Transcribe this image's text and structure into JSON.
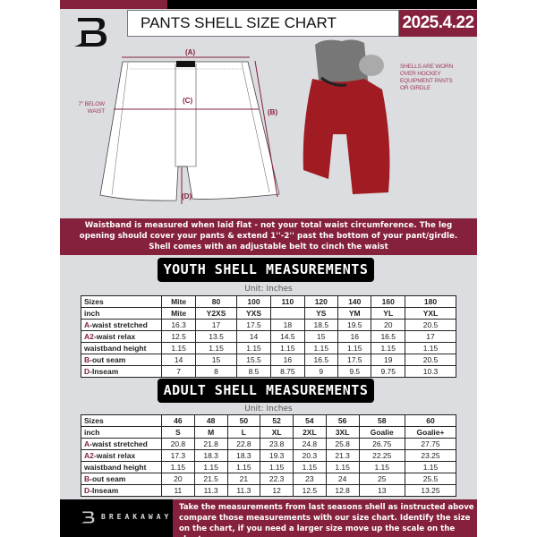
{
  "header": {
    "title": "PANTS SHELL SIZE CHART",
    "date": "2025.4.22"
  },
  "colors": {
    "brand_maroon": "#85213d",
    "pants_red": "#a01c22",
    "background": "#dcdde0"
  },
  "diagram": {
    "label_a": "(A)",
    "label_b": "(B)",
    "label_c": "(C)",
    "label_d": "(D)",
    "c_note": [
      "7'' BELOW",
      "WAIST"
    ],
    "side_note": [
      "SHELLS ARE WORN",
      "OVER HOCKEY",
      "EQUIPMENT PANTS",
      "OR GIRDLE"
    ]
  },
  "banner": {
    "lines": [
      "Waistband is measured when laid flat - not your total waist circumference. The leg",
      "opening should cover your pants & extend 1''-2'' past the bottom of your pant/girdle.",
      "Shell comes with an adjustable belt to cinch the waist"
    ]
  },
  "youth": {
    "title": "YOUTH SHELL MEASUREMENTS",
    "unit": "Unit: Inches",
    "rows": [
      {
        "code": "",
        "label": "Sizes",
        "values": [
          "Mite",
          "80",
          "100",
          "110",
          "120",
          "140",
          "160",
          "180"
        ]
      },
      {
        "code": "",
        "label": "inch",
        "values": [
          "Mite",
          "Y2XS",
          "YXS",
          "",
          "YS",
          "YM",
          "YL",
          "YXL"
        ]
      },
      {
        "code": "A",
        "label": "-waist stretched",
        "values": [
          "16.3",
          "17",
          "17.5",
          "18",
          "18.5",
          "19.5",
          "20",
          "20.5"
        ]
      },
      {
        "code": "A2",
        "label": "-waist relax",
        "values": [
          "12.5",
          "13.5",
          "14",
          "14.5",
          "15",
          "16",
          "16.5",
          "17"
        ]
      },
      {
        "code": "",
        "label": "waistband height",
        "values": [
          "1.15",
          "1.15",
          "1.15",
          "1.15",
          "1.15",
          "1.15",
          "1.15",
          "1.15"
        ]
      },
      {
        "code": "B",
        "label": "-out seam",
        "values": [
          "14",
          "15",
          "15.5",
          "16",
          "16.5",
          "17.5",
          "19",
          "20.5"
        ]
      },
      {
        "code": "D",
        "label": "-Inseam",
        "values": [
          "7",
          "8",
          "8.5",
          "8.75",
          "9",
          "9.5",
          "9.75",
          "10.3"
        ]
      }
    ]
  },
  "adult": {
    "title": "ADULT SHELL MEASUREMENTS",
    "unit": "Unit: Inches",
    "rows": [
      {
        "code": "",
        "label": "Sizes",
        "values": [
          "46",
          "48",
          "50",
          "52",
          "54",
          "56",
          "58",
          "60"
        ]
      },
      {
        "code": "",
        "label": "inch",
        "values": [
          "S",
          "M",
          "L",
          "XL",
          "2XL",
          "3XL",
          "Goalie",
          "Goalie+"
        ]
      },
      {
        "code": "A",
        "label": "-waist stretched",
        "values": [
          "20.8",
          "21.8",
          "22.8",
          "23.8",
          "24.8",
          "25.8",
          "26.75",
          "27.75"
        ]
      },
      {
        "code": "A2",
        "label": "-waist relax",
        "values": [
          "17.3",
          "18.3",
          "18.3",
          "19.3",
          "20.3",
          "21.3",
          "22.25",
          "23.25"
        ]
      },
      {
        "code": "",
        "label": "waistband height",
        "values": [
          "1.15",
          "1.15",
          "1.15",
          "1.15",
          "1.15",
          "1.15",
          "1.15",
          "1.15"
        ]
      },
      {
        "code": "B",
        "label": "-out seam",
        "values": [
          "20",
          "21.5",
          "21",
          "22.3",
          "23",
          "24",
          "25",
          "25.5"
        ]
      },
      {
        "code": "D",
        "label": "-Inseam",
        "values": [
          "11",
          "11.3",
          "11.3",
          "12",
          "12.5",
          "12.8",
          "13",
          "13.25"
        ]
      }
    ]
  },
  "footer": {
    "brand": "BREAKAWAY",
    "lines": [
      "Take the measurements from last seasons shell as instructed above",
      "compare those measurements  with our size chart. Identify the size",
      "on the chart, if you need a larger size move up the scale on the chart"
    ]
  }
}
